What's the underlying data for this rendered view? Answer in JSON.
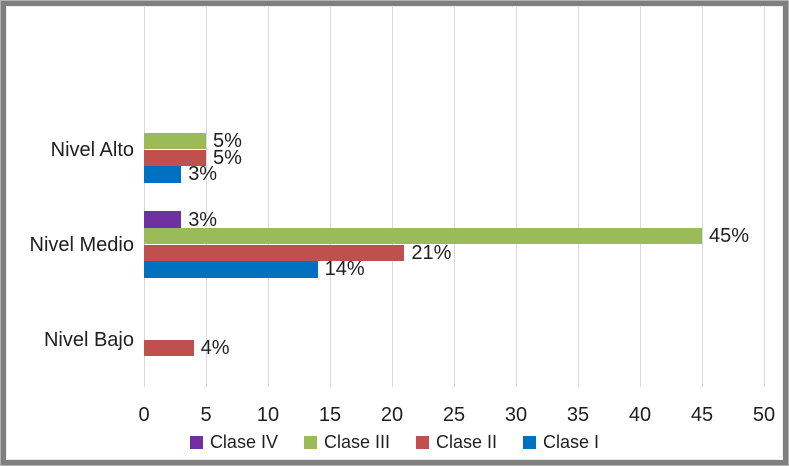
{
  "chart_data": {
    "type": "bar",
    "orientation": "horizontal",
    "categories": [
      "Nivel Alto",
      "Nivel Medio",
      "Nivel Bajo"
    ],
    "series": [
      {
        "name": "Clase IV",
        "color": "#7030A0",
        "values": [
          0,
          3,
          0
        ]
      },
      {
        "name": "Clase III",
        "color": "#9BBB59",
        "values": [
          5,
          45,
          0
        ]
      },
      {
        "name": "Clase II",
        "color": "#C0504D",
        "values": [
          5,
          21,
          4
        ]
      },
      {
        "name": "Clase I",
        "color": "#0070C0",
        "values": [
          3,
          14,
          0
        ]
      }
    ],
    "data_labels": {
      "Nivel Alto": {
        "Clase III": "5%",
        "Clase II": "5%",
        "Clase I": "3%"
      },
      "Nivel Medio": {
        "Clase IV": "3%",
        "Clase III": "45%",
        "Clase II": "21%",
        "Clase I": "14%"
      },
      "Nivel Bajo": {
        "Clase II": "4%"
      }
    },
    "data_label_suffix": "%",
    "xlim": [
      0,
      50
    ],
    "tick_step": 5,
    "tick_labels": [
      "0",
      "5",
      "10",
      "15",
      "20",
      "25",
      "30",
      "35",
      "40",
      "45",
      "50"
    ],
    "grid": true,
    "gridline_color": "#d9d9d9",
    "empty_leading_band": true,
    "legend": {
      "position": "bottom",
      "items": [
        "Clase IV",
        "Clase III",
        "Clase II",
        "Clase I"
      ]
    }
  },
  "frame": {
    "border_color": "#7f7f7f",
    "background": "#ffffff",
    "text_color": "#1f1f1f"
  }
}
